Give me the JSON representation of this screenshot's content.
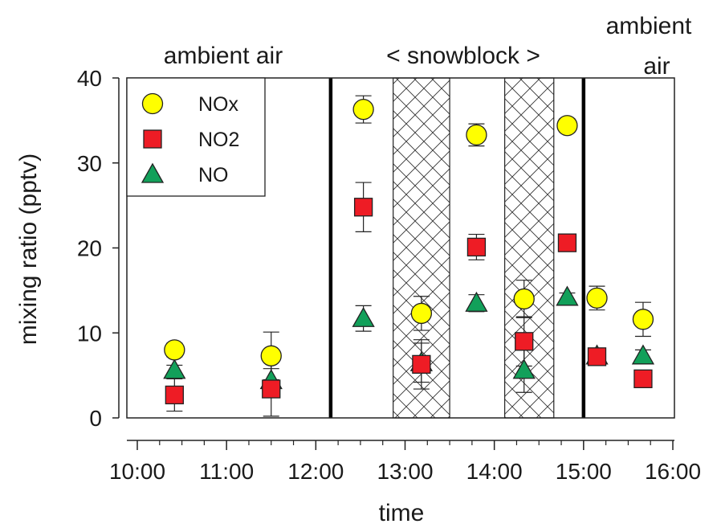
{
  "chart_data": {
    "type": "scatter",
    "xlabel": "time",
    "ylabel": "mixing ratio (pptv)",
    "ylim": [
      0,
      40
    ],
    "yticks": [
      0,
      10,
      20,
      30,
      40
    ],
    "xlim": [
      "09:55",
      "16:00"
    ],
    "xtick_labels": [
      "10:00",
      "11:00",
      "12:00",
      "13:00",
      "14:00",
      "15:00",
      "16:00"
    ],
    "legend_position": "top-left",
    "region_labels": {
      "left": "ambient air",
      "middle": "< snowblock >",
      "right_line1": "ambient",
      "right_line2": "air"
    },
    "divider_times": [
      "12:10",
      "15:00"
    ],
    "hatched_periods": [
      [
        "12:52",
        "13:30"
      ],
      [
        "14:07",
        "14:40"
      ]
    ],
    "series": [
      {
        "name": "NOx",
        "marker": "circle",
        "color": "#ffff00",
        "points": [
          {
            "x": "10:25",
            "y": 8.0,
            "err": 0.8
          },
          {
            "x": "11:30",
            "y": 7.3,
            "err": 2.8
          },
          {
            "x": "12:32",
            "y": 36.3,
            "err": 1.6
          },
          {
            "x": "13:11",
            "y": 12.3,
            "err": 2.0
          },
          {
            "x": "13:48",
            "y": 33.3,
            "err": 1.3
          },
          {
            "x": "14:20",
            "y": 14.0,
            "err": 2.2
          },
          {
            "x": "14:49",
            "y": 34.4,
            "err": 0.8
          },
          {
            "x": "15:09",
            "y": 14.1,
            "err": 1.4
          },
          {
            "x": "15:40",
            "y": 11.6,
            "err": 2.0
          }
        ]
      },
      {
        "name": "NO2",
        "marker": "square",
        "color": "#ee1c25",
        "points": [
          {
            "x": "10:25",
            "y": 2.7,
            "err": 1.9
          },
          {
            "x": "11:30",
            "y": 3.4,
            "err": 3.2
          },
          {
            "x": "12:32",
            "y": 24.8,
            "err": 2.9
          },
          {
            "x": "13:11",
            "y": 6.3,
            "err": 2.9
          },
          {
            "x": "13:48",
            "y": 20.1,
            "err": 1.5
          },
          {
            "x": "14:20",
            "y": 9.0,
            "err": 2.9
          },
          {
            "x": "14:49",
            "y": 20.6,
            "err": 0.8
          },
          {
            "x": "15:09",
            "y": 7.2,
            "err": 0.7
          },
          {
            "x": "15:40",
            "y": 4.6,
            "err": 0.7
          }
        ]
      },
      {
        "name": "NO",
        "marker": "triangle",
        "color": "#12a05a",
        "points": [
          {
            "x": "10:25",
            "y": 5.6,
            "err": 0.6
          },
          {
            "x": "11:30",
            "y": 4.4,
            "err": 1.4
          },
          {
            "x": "12:32",
            "y": 11.7,
            "err": 1.5
          },
          {
            "x": "13:11",
            "y": 6.5,
            "err": 2.3
          },
          {
            "x": "13:48",
            "y": 13.5,
            "err": 1.0
          },
          {
            "x": "14:20",
            "y": 5.6,
            "err": 2.6
          },
          {
            "x": "14:49",
            "y": 14.2,
            "err": 0.5
          },
          {
            "x": "15:09",
            "y": 7.3,
            "err": 0.8
          },
          {
            "x": "15:40",
            "y": 7.3,
            "err": 0.7
          }
        ]
      }
    ]
  }
}
